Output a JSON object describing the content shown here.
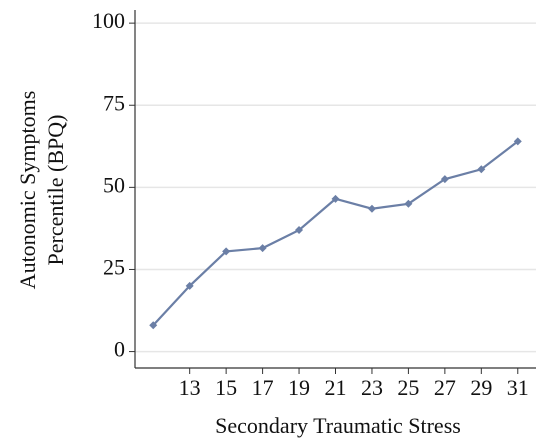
{
  "chart_data": {
    "type": "line",
    "xlabel": "Secondary Traumatic Stress",
    "ylabel": [
      "Autonomic Symptoms",
      "Percentile (BPQ)"
    ],
    "x": [
      11,
      13,
      15,
      17,
      19,
      21,
      23,
      25,
      27,
      29,
      31
    ],
    "series": [
      {
        "color": "#6b7fa6",
        "values": [
          8,
          20,
          30.5,
          31.5,
          37,
          46.5,
          43.5,
          45,
          52.5,
          55.5,
          64
        ]
      }
    ],
    "xlim": [
      10,
      32
    ],
    "xticks": [
      13,
      15,
      17,
      19,
      21,
      23,
      25,
      27,
      29,
      31
    ],
    "ylim": [
      -5,
      104
    ],
    "yticks": [
      0,
      25,
      50,
      75,
      100
    ],
    "grid": true
  }
}
